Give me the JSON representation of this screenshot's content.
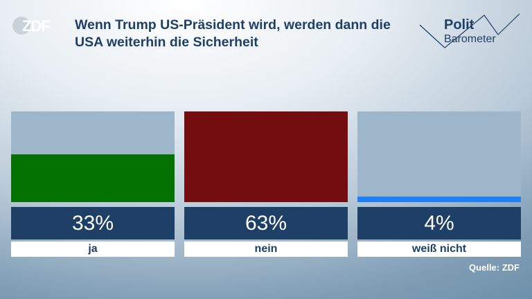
{
  "logo": {
    "text": "ZDF"
  },
  "title": "Wenn Trump US-Präsident wird, werden dann die USA weiterhin die Sicherheit",
  "brand": {
    "word": "Polit",
    "sub": "Barometer"
  },
  "source": "Quelle: ZDF",
  "colors": {
    "ja": "#047203",
    "nein": "#730d0f",
    "weiss_nicht": "#1f80f5",
    "value_box": "#1e3f66",
    "track": "#9eb6c9"
  },
  "chart_data": {
    "type": "bar",
    "categories": [
      "ja",
      "nein",
      "weiß nicht"
    ],
    "values": [
      33,
      63,
      4
    ],
    "labels": [
      "33%",
      "63%",
      "4%"
    ],
    "unit": "%",
    "ylim": [
      0,
      63
    ]
  }
}
